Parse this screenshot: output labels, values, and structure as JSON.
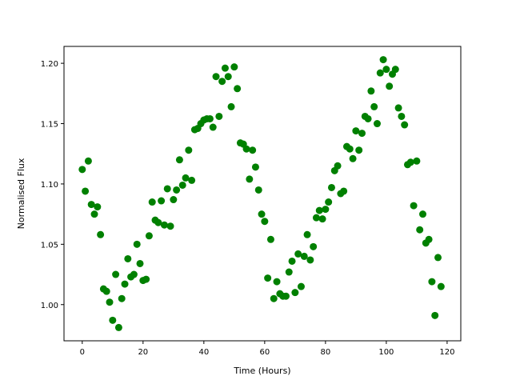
{
  "chart_data": {
    "type": "scatter",
    "x_label": "Time (Hours)",
    "y_label": "Normalised Flux",
    "color": "#008000",
    "x": [
      0,
      1,
      2,
      3,
      4,
      5,
      6,
      7,
      8,
      9,
      10,
      11,
      12,
      13,
      14,
      15,
      16,
      17,
      18,
      19,
      20,
      21,
      22,
      23,
      24,
      25,
      26,
      27,
      28,
      29,
      30,
      31,
      32,
      33,
      34,
      35,
      36,
      37,
      38,
      39,
      40,
      41,
      42,
      43,
      44,
      45,
      46,
      47,
      48,
      49,
      50,
      51,
      52,
      53,
      54,
      55,
      56,
      57,
      58,
      59,
      60,
      61,
      62,
      63,
      64,
      65,
      66,
      67,
      68,
      69,
      70,
      71,
      72,
      73,
      74,
      75,
      76,
      77,
      78,
      79,
      80,
      81,
      82,
      83,
      84,
      85,
      86,
      87,
      88,
      89,
      90,
      91,
      92,
      93,
      94,
      95,
      96,
      97,
      98,
      99,
      100,
      101,
      102,
      103,
      104,
      105,
      106,
      107,
      108,
      109,
      110,
      111,
      112,
      113,
      114,
      115,
      116,
      117,
      118
    ],
    "values": [
      1.112,
      1.094,
      1.119,
      1.083,
      1.075,
      1.081,
      1.058,
      1.013,
      1.011,
      1.002,
      0.987,
      1.025,
      0.981,
      1.005,
      1.017,
      1.038,
      1.023,
      1.025,
      1.05,
      1.034,
      1.02,
      1.021,
      1.057,
      1.085,
      1.07,
      1.068,
      1.086,
      1.066,
      1.096,
      1.065,
      1.087,
      1.095,
      1.12,
      1.099,
      1.105,
      1.128,
      1.103,
      1.145,
      1.146,
      1.15,
      1.153,
      1.154,
      1.154,
      1.147,
      1.189,
      1.156,
      1.185,
      1.196,
      1.189,
      1.164,
      1.197,
      1.179,
      1.134,
      1.133,
      1.129,
      1.104,
      1.128,
      1.114,
      1.095,
      1.075,
      1.069,
      1.022,
      1.054,
      1.005,
      1.019,
      1.009,
      1.007,
      1.007,
      1.027,
      1.036,
      1.01,
      1.042,
      1.015,
      1.04,
      1.058,
      1.037,
      1.048,
      1.072,
      1.078,
      1.071,
      1.079,
      1.085,
      1.097,
      1.111,
      1.115,
      1.092,
      1.094,
      1.131,
      1.129,
      1.121,
      1.144,
      1.128,
      1.142,
      1.156,
      1.154,
      1.177,
      1.164,
      1.15,
      1.192,
      1.203,
      1.195,
      1.181,
      1.191,
      1.195,
      1.163,
      1.156,
      1.149,
      1.116,
      1.118,
      1.082,
      1.119,
      1.062,
      1.075,
      1.051,
      1.054,
      1.019,
      0.991,
      1.039,
      1.015
    ],
    "xlim": [
      -6,
      124.5
    ],
    "ylim": [
      0.97,
      1.214
    ],
    "xticks": [
      0,
      20,
      40,
      60,
      80,
      100,
      120
    ],
    "yticks": [
      {
        "value": 1,
        "label": "1.00"
      },
      1.05,
      {
        "value": 1.1,
        "label": "1.10"
      },
      1.15,
      {
        "value": 1.2,
        "label": "1.20"
      }
    ]
  }
}
